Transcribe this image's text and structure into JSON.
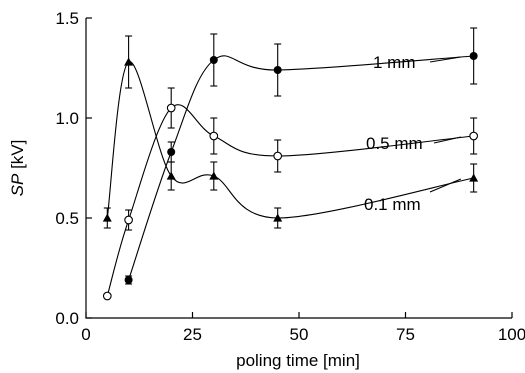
{
  "chart_data": {
    "type": "line",
    "title": "",
    "xlabel": "poling time [min]",
    "ylabel_italic": "SP",
    "ylabel_unit": " [kV]",
    "xlim": [
      0,
      100
    ],
    "ylim": [
      0,
      1.5
    ],
    "xticks": [
      0,
      25,
      50,
      75,
      100
    ],
    "xtick_labels": [
      "0",
      "25",
      "50",
      "75",
      "100"
    ],
    "yticks": [
      0,
      0.5,
      1.0,
      1.5
    ],
    "ytick_labels": [
      "0.0",
      "0.5",
      "1.0",
      "1.5"
    ],
    "grid": false,
    "legend": "inline labels",
    "series": [
      {
        "name": "1 mm",
        "marker": "filled-circle",
        "points": [
          {
            "x": 10,
            "y": 0.19,
            "err": 0.02
          },
          {
            "x": 20,
            "y": 0.83,
            "err": 0.05
          },
          {
            "x": 30,
            "y": 1.29,
            "err": 0.13
          },
          {
            "x": 45,
            "y": 1.24,
            "err": 0.13
          },
          {
            "x": 91,
            "y": 1.31,
            "err": 0.14
          }
        ]
      },
      {
        "name": "0.5 mm",
        "marker": "open-circle",
        "points": [
          {
            "x": 5,
            "y": 0.11,
            "err": 0.0
          },
          {
            "x": 10,
            "y": 0.49,
            "err": 0.05
          },
          {
            "x": 20,
            "y": 1.05,
            "err": 0.1
          },
          {
            "x": 30,
            "y": 0.91,
            "err": 0.09
          },
          {
            "x": 45,
            "y": 0.81,
            "err": 0.08
          },
          {
            "x": 91,
            "y": 0.91,
            "err": 0.09
          }
        ]
      },
      {
        "name": "0.1 mm",
        "marker": "filled-triangle",
        "points": [
          {
            "x": 5,
            "y": 0.5,
            "err": 0.05
          },
          {
            "x": 10,
            "y": 1.28,
            "err": 0.13
          },
          {
            "x": 20,
            "y": 0.71,
            "err": 0.07
          },
          {
            "x": 30,
            "y": 0.71,
            "err": 0.07
          },
          {
            "x": 45,
            "y": 0.5,
            "err": 0.05
          },
          {
            "x": 91,
            "y": 0.7,
            "err": 0.07
          }
        ]
      }
    ]
  }
}
